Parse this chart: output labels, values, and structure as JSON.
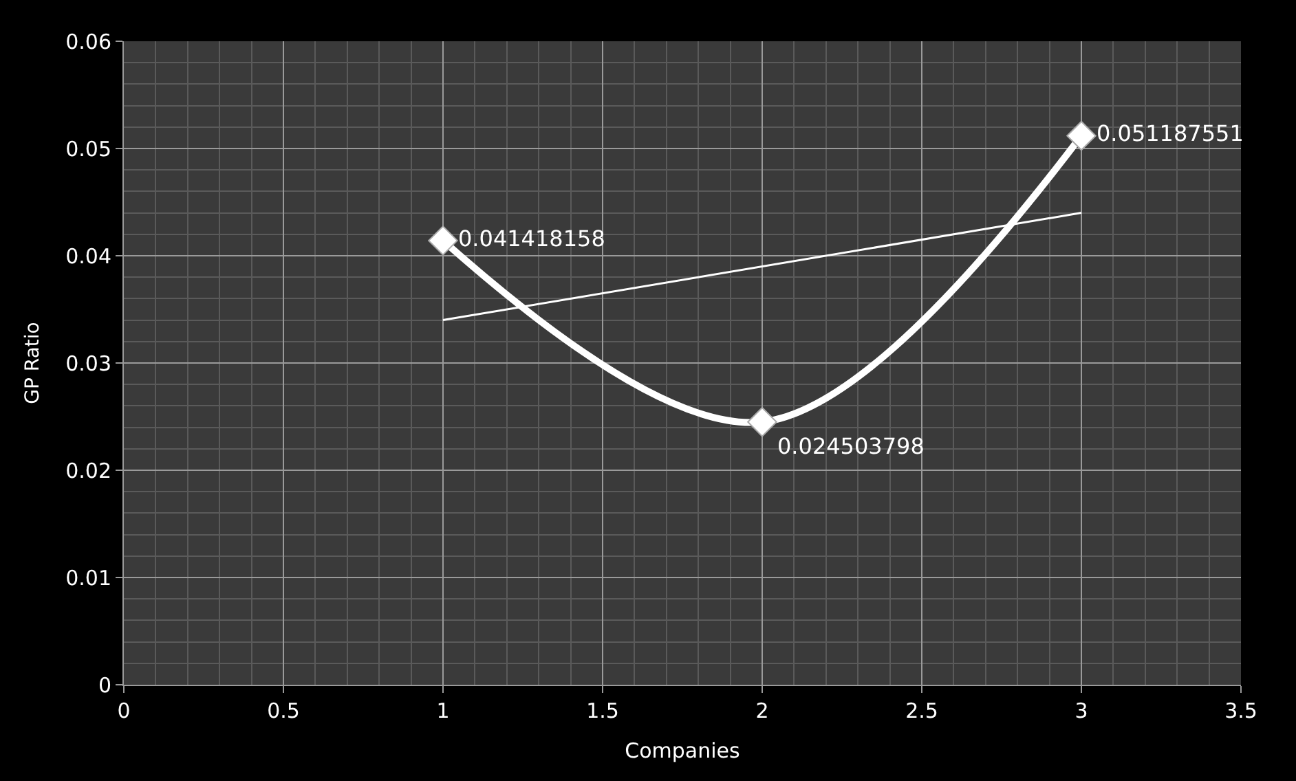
{
  "chart_data": {
    "type": "line",
    "xlabel": "Companies",
    "ylabel": "GP Ratio",
    "series": [
      {
        "x": [
          1,
          2,
          3
        ],
        "values": [
          0.041418158,
          0.024503798,
          0.051187551
        ],
        "color": "#ffffff",
        "marker": "diamond",
        "value_labels": [
          "0.041418158",
          "0.024503798",
          "0.051187551"
        ]
      },
      {
        "x": [
          1,
          3
        ],
        "values": [
          0.034,
          0.044
        ],
        "color": "#ffffff",
        "marker": "none"
      }
    ],
    "xlim": [
      0,
      3.5
    ],
    "xticks": [
      0,
      0.5,
      1,
      1.5,
      2,
      2.5,
      3,
      3.5
    ],
    "ylim": [
      0,
      0.06
    ],
    "yticks": [
      0,
      0.01,
      0.02,
      0.03,
      0.04,
      0.05,
      0.06
    ],
    "grid": true
  }
}
